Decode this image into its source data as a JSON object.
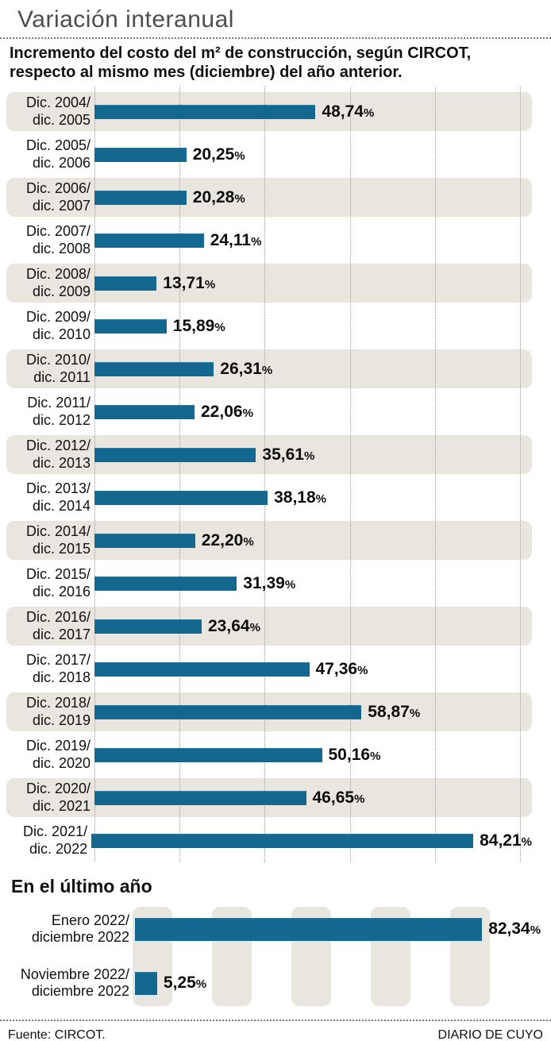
{
  "header": {
    "title": "Variación interanual",
    "subtitle_line1": "Incremento del costo del m² de construcción, según CIRCOT,",
    "subtitle_line2": "respecto al mismo mes (diciembre) del año anterior."
  },
  "chart_data": [
    {
      "type": "bar",
      "orientation": "horizontal",
      "title": "Variación interanual",
      "subtitle": "Incremento del costo del m² de construcción, según CIRCOT, respecto al mismo mes (diciembre) del año anterior.",
      "unit": "%",
      "decimal_separator": ",",
      "xlim": [
        0,
        100
      ],
      "gridlines": true,
      "categories": [
        "Dic. 2004/dic. 2005",
        "Dic. 2005/dic. 2006",
        "Dic. 2006/dic. 2007",
        "Dic. 2007/dic. 2008",
        "Dic. 2008/dic. 2009",
        "Dic. 2009/dic. 2010",
        "Dic. 2010/dic. 2011",
        "Dic. 2011/dic. 2012",
        "Dic. 2012/dic. 2013",
        "Dic. 2013/dic. 2014",
        "Dic. 2014/dic. 2015",
        "Dic. 2015/dic. 2016",
        "Dic. 2016/dic. 2017",
        "Dic. 2017/dic. 2018",
        "Dic. 2018/dic. 2019",
        "Dic. 2019/dic. 2020",
        "Dic. 2020/dic. 2021",
        "Dic. 2021/dic. 2022"
      ],
      "values": [
        48.74,
        20.25,
        20.28,
        24.11,
        13.71,
        15.89,
        26.31,
        22.06,
        35.61,
        38.18,
        22.2,
        31.39,
        23.64,
        47.36,
        58.87,
        50.16,
        46.65,
        84.21
      ],
      "rows": [
        {
          "label_line1": "Dic. 2004/",
          "label_line2": "dic. 2005",
          "value": 48.74,
          "value_display": "48,74"
        },
        {
          "label_line1": "Dic. 2005/",
          "label_line2": "dic. 2006",
          "value": 20.25,
          "value_display": "20,25"
        },
        {
          "label_line1": "Dic. 2006/",
          "label_line2": "dic. 2007",
          "value": 20.28,
          "value_display": "20,28"
        },
        {
          "label_line1": "Dic. 2007/",
          "label_line2": "dic. 2008",
          "value": 24.11,
          "value_display": "24,11"
        },
        {
          "label_line1": "Dic. 2008/",
          "label_line2": "dic. 2009",
          "value": 13.71,
          "value_display": "13,71"
        },
        {
          "label_line1": "Dic. 2009/",
          "label_line2": "dic. 2010",
          "value": 15.89,
          "value_display": "15,89"
        },
        {
          "label_line1": "Dic. 2010/",
          "label_line2": "dic. 2011",
          "value": 26.31,
          "value_display": "26,31"
        },
        {
          "label_line1": "Dic. 2011/",
          "label_line2": "dic. 2012",
          "value": 22.06,
          "value_display": "22,06"
        },
        {
          "label_line1": "Dic. 2012/",
          "label_line2": "dic. 2013",
          "value": 35.61,
          "value_display": "35,61"
        },
        {
          "label_line1": "Dic. 2013/",
          "label_line2": "dic. 2014",
          "value": 38.18,
          "value_display": "38,18"
        },
        {
          "label_line1": "Dic. 2014/",
          "label_line2": "dic. 2015",
          "value": 22.2,
          "value_display": "22,20"
        },
        {
          "label_line1": "Dic. 2015/",
          "label_line2": "dic. 2016",
          "value": 31.39,
          "value_display": "31,39"
        },
        {
          "label_line1": "Dic. 2016/",
          "label_line2": "dic. 2017",
          "value": 23.64,
          "value_display": "23,64"
        },
        {
          "label_line1": "Dic. 2017/",
          "label_line2": "dic. 2018",
          "value": 47.36,
          "value_display": "47,36"
        },
        {
          "label_line1": "Dic. 2018/",
          "label_line2": "dic. 2019",
          "value": 58.87,
          "value_display": "58,87"
        },
        {
          "label_line1": "Dic. 2019/",
          "label_line2": "dic. 2020",
          "value": 50.16,
          "value_display": "50,16"
        },
        {
          "label_line1": "Dic. 2020/",
          "label_line2": "dic. 2021",
          "value": 46.65,
          "value_display": "46,65"
        },
        {
          "label_line1": "Dic. 2021/",
          "label_line2": "dic. 2022",
          "value": 84.21,
          "value_display": "84,21"
        }
      ]
    },
    {
      "type": "bar",
      "orientation": "horizontal",
      "title": "En el último año",
      "unit": "%",
      "decimal_separator": ",",
      "xlim": [
        0,
        100
      ],
      "gridlines": false,
      "categories": [
        "Enero 2022/diciembre 2022",
        "Noviembre 2022/diciembre 2022"
      ],
      "values": [
        82.34,
        5.25
      ],
      "rows": [
        {
          "label_line1": "Enero 2022/",
          "label_line2": "diciembre 2022",
          "value": 82.34,
          "value_display": "82,34"
        },
        {
          "label_line1": "Noviembre 2022/",
          "label_line2": "diciembre 2022",
          "value": 5.25,
          "value_display": "5,25"
        }
      ]
    }
  ],
  "footer": {
    "source": "Fuente: CIRCOT.",
    "credit": "DIARIO DE CUYO"
  },
  "colors": {
    "bar": "#14678f",
    "row_shade": "#e8e6de",
    "title_gray": "#4d4d4f",
    "text": "#111111",
    "gridline": "#9a9a9a"
  }
}
